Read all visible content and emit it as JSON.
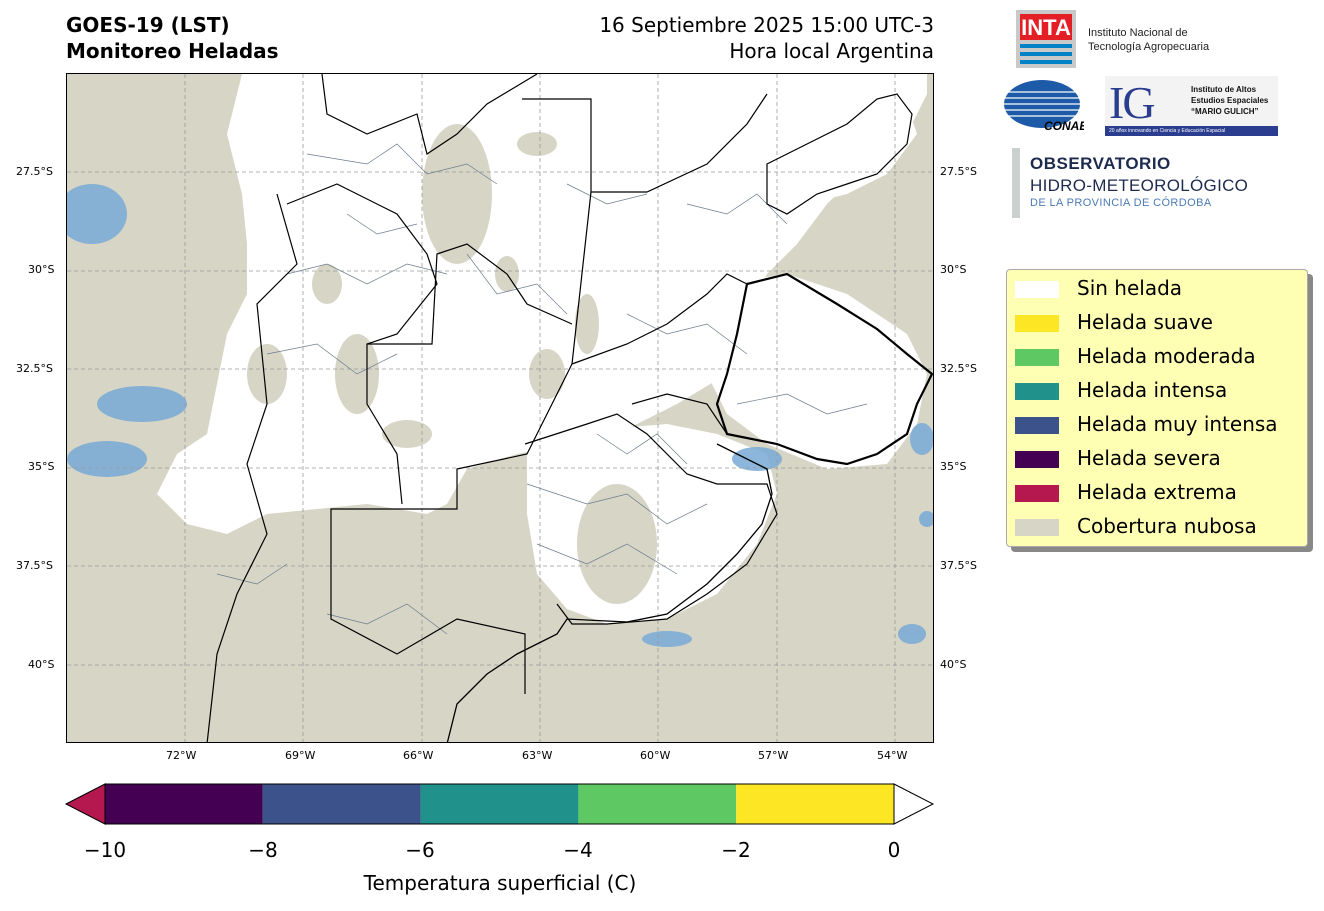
{
  "header": {
    "left_line1": "GOES-19 (LST)",
    "left_line2": "Monitoreo Heladas",
    "right_line1": "16 Septiembre 2025 15:00 UTC-3",
    "right_line2": "Hora local Argentina"
  },
  "map": {
    "lat_labels": [
      "27.5°S",
      "30°S",
      "32.5°S",
      "35°S",
      "37.5°S",
      "40°S"
    ],
    "lon_labels": [
      "72°W",
      "69°W",
      "66°W",
      "63°W",
      "60°W",
      "57°W",
      "54°W"
    ],
    "colors": {
      "cloud": "#d6d5c6",
      "no_frost": "#ffffff",
      "water": "#78a9d6",
      "border": "#000000",
      "dept": "#6d7b8d"
    }
  },
  "logos": {
    "inta_mark": "INTA",
    "inta_line1": "Instituto Nacional de",
    "inta_line2": "Tecnología Agropecuaria",
    "conae": "CONAE",
    "ig_mark": "IG",
    "ig_line1": "Instituto de Altos",
    "ig_line2": "Estudios Espaciales",
    "ig_line3": "“MARIO GULICH”",
    "ig_band": "20 años innovando en Ciencia y Educación Espacial",
    "obs_line1": "OBSERVATORIO",
    "obs_line2": "HIDRO-METEOROLÓGICO",
    "obs_line3": "DE LA PROVINCIA DE CÓRDOBA"
  },
  "legend": {
    "items": [
      {
        "label": "Sin helada",
        "color": "#ffffff"
      },
      {
        "label": "Helada suave",
        "color": "#fde725"
      },
      {
        "label": "Helada moderada",
        "color": "#5ec962"
      },
      {
        "label": "Helada intensa",
        "color": "#21918c"
      },
      {
        "label": "Helada muy intensa",
        "color": "#3b528b"
      },
      {
        "label": "Helada severa",
        "color": "#440154"
      },
      {
        "label": "Helada extrema",
        "color": "#b5174f"
      },
      {
        "label": "Cobertura nubosa",
        "color": "#d6d5c6"
      }
    ]
  },
  "colorbar": {
    "label": "Temperatura superficial (C)",
    "ticks": [
      "−10",
      "−8",
      "−6",
      "−4",
      "−2",
      "0"
    ],
    "segments": [
      "#440154",
      "#3b528b",
      "#21918c",
      "#5ec962",
      "#fde725"
    ],
    "under_color": "#b5174f",
    "over_color": "#ffffff"
  }
}
